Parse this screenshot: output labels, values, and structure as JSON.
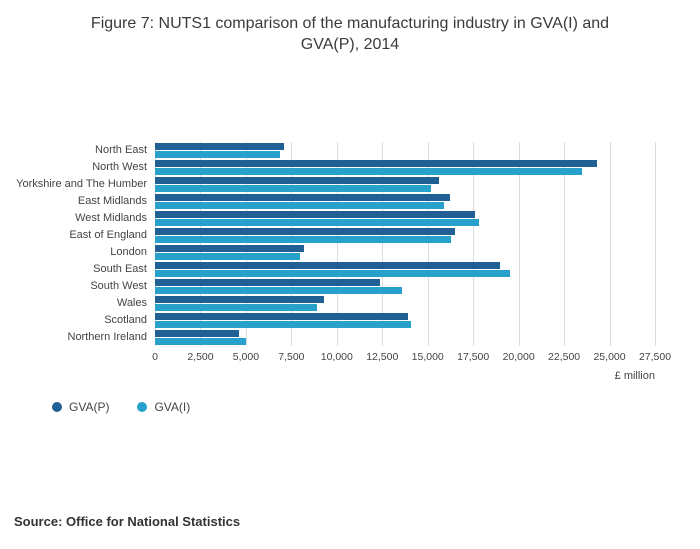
{
  "title": "Figure 7: NUTS1 comparison of the manufacturing industry in GVA(I) and GVA(P), 2014",
  "source": "Source: Office for National Statistics",
  "chart_data": {
    "type": "bar",
    "orientation": "horizontal",
    "title": "Figure 7: NUTS1 comparison of the manufacturing industry in GVA(I) and GVA(P), 2014",
    "categories": [
      "North East",
      "North West",
      "Yorkshire and The Humber",
      "East Midlands",
      "West Midlands",
      "East of England",
      "London",
      "South East",
      "South West",
      "Wales",
      "Scotland",
      "Northern Ireland"
    ],
    "series": [
      {
        "name": "GVA(P)",
        "color": "#206095",
        "values": [
          7100,
          24300,
          15600,
          16200,
          17600,
          16500,
          8200,
          19000,
          12400,
          9300,
          13900,
          4600
        ]
      },
      {
        "name": "GVA(I)",
        "color": "#27a0cc",
        "values": [
          6900,
          23500,
          15200,
          15900,
          17800,
          16300,
          8000,
          19500,
          13600,
          8900,
          14100,
          5000
        ]
      }
    ],
    "xlabel": "£ million",
    "xlim": [
      0,
      27500
    ],
    "xticks": [
      0,
      2500,
      5000,
      7500,
      10000,
      12500,
      15000,
      17500,
      20000,
      22500,
      25000,
      27500
    ],
    "xtick_labels": [
      "0",
      "2,500",
      "5,000",
      "7,500",
      "10,000",
      "12,500",
      "15,000",
      "17,500",
      "20,000",
      "22,500",
      "25,000",
      "27,500"
    ],
    "grid": true,
    "legend_position": "bottom-left"
  }
}
